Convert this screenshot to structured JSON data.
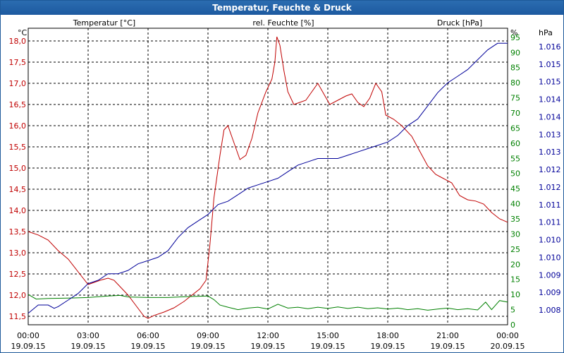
{
  "window": {
    "title": "Temperatur, Feuchte & Druck"
  },
  "colors": {
    "temp": "#c00000",
    "hum": "#008000",
    "press": "#000099",
    "grid": "#000000"
  },
  "chart_data": {
    "type": "line",
    "title": "Temperatur, Feuchte & Druck",
    "axes": {
      "temp": {
        "label": "Temperatur [°C]",
        "unit": "°C",
        "ylim": [
          11.3,
          18.3
        ],
        "ticks": [
          "11,5",
          "12,0",
          "12,5",
          "13,0",
          "13,5",
          "14,0",
          "14,5",
          "15,0",
          "15,5",
          "16,0",
          "16,5",
          "17,0",
          "17,5",
          "18,0"
        ]
      },
      "hum": {
        "label": "rel. Feuchte [%]",
        "unit": "%",
        "ylim": [
          0,
          98
        ],
        "ticks": [
          "0",
          "5",
          "10",
          "15",
          "20",
          "25",
          "30",
          "35",
          "40",
          "45",
          "50",
          "55",
          "60",
          "65",
          "70",
          "75",
          "80",
          "85",
          "90",
          "95"
        ]
      },
      "press": {
        "label": "Druck [hPa]",
        "unit": "hPa",
        "ticks": [
          "1.008",
          "1.009",
          "1.009",
          "1.010",
          "1.010",
          "1.011",
          "1.011",
          "1.012",
          "1.012",
          "1.013",
          "1.013",
          "1.014",
          "1.014",
          "1.015",
          "1.015",
          "1.016"
        ]
      }
    },
    "x_ticks": [
      {
        "time": "00:00",
        "date": "19.09.15"
      },
      {
        "time": "03:00",
        "date": "19.09.15"
      },
      {
        "time": "06:00",
        "date": "19.09.15"
      },
      {
        "time": "09:00",
        "date": "19.09.15"
      },
      {
        "time": "12:00",
        "date": "19.09.15"
      },
      {
        "time": "15:00",
        "date": "19.09.15"
      },
      {
        "time": "18:00",
        "date": "19.09.15"
      },
      {
        "time": "21:00",
        "date": "19.09.15"
      },
      {
        "time": "00:00",
        "date": "20.09.15"
      }
    ],
    "x_range_hours": [
      0,
      24
    ],
    "series": [
      {
        "name": "Temperatur [°C]",
        "axis": "temp",
        "color": "#c00000",
        "points": [
          [
            0,
            13.5
          ],
          [
            0.5,
            13.42
          ],
          [
            1,
            13.3
          ],
          [
            1.5,
            13.05
          ],
          [
            2,
            12.85
          ],
          [
            2.5,
            12.55
          ],
          [
            3,
            12.25
          ],
          [
            3.3,
            12.3
          ],
          [
            3.6,
            12.35
          ],
          [
            4,
            12.4
          ],
          [
            4.3,
            12.35
          ],
          [
            4.6,
            12.2
          ],
          [
            5,
            12.0
          ],
          [
            5.4,
            11.75
          ],
          [
            5.8,
            11.5
          ],
          [
            6,
            11.45
          ],
          [
            6.3,
            11.52
          ],
          [
            6.8,
            11.6
          ],
          [
            7.3,
            11.7
          ],
          [
            7.8,
            11.85
          ],
          [
            8.2,
            12.0
          ],
          [
            8.6,
            12.15
          ],
          [
            8.9,
            12.35
          ],
          [
            9.1,
            13.2
          ],
          [
            9.3,
            14.3
          ],
          [
            9.6,
            15.3
          ],
          [
            9.8,
            15.9
          ],
          [
            10,
            16.0
          ],
          [
            10.3,
            15.6
          ],
          [
            10.6,
            15.2
          ],
          [
            10.9,
            15.3
          ],
          [
            11.2,
            15.7
          ],
          [
            11.5,
            16.3
          ],
          [
            11.9,
            16.8
          ],
          [
            12.2,
            17.1
          ],
          [
            12.35,
            17.5
          ],
          [
            12.45,
            18.1
          ],
          [
            12.6,
            17.9
          ],
          [
            12.8,
            17.3
          ],
          [
            13,
            16.8
          ],
          [
            13.3,
            16.5
          ],
          [
            13.6,
            16.55
          ],
          [
            13.9,
            16.6
          ],
          [
            14.2,
            16.8
          ],
          [
            14.5,
            17.0
          ],
          [
            14.8,
            16.75
          ],
          [
            15.1,
            16.5
          ],
          [
            15.5,
            16.6
          ],
          [
            15.9,
            16.7
          ],
          [
            16.2,
            16.75
          ],
          [
            16.5,
            16.55
          ],
          [
            16.8,
            16.45
          ],
          [
            17.1,
            16.65
          ],
          [
            17.4,
            17.0
          ],
          [
            17.7,
            16.8
          ],
          [
            17.9,
            16.25
          ],
          [
            18.3,
            16.15
          ],
          [
            18.7,
            16.0
          ],
          [
            19.2,
            15.75
          ],
          [
            19.6,
            15.4
          ],
          [
            20,
            15.05
          ],
          [
            20.4,
            14.85
          ],
          [
            20.8,
            14.75
          ],
          [
            21.2,
            14.65
          ],
          [
            21.6,
            14.35
          ],
          [
            22,
            14.25
          ],
          [
            22.4,
            14.22
          ],
          [
            22.8,
            14.15
          ],
          [
            23.2,
            13.95
          ],
          [
            23.6,
            13.8
          ],
          [
            24,
            13.72
          ]
        ]
      },
      {
        "name": "rel. Feuchte [%]",
        "axis": "hum",
        "color": "#008000",
        "points": [
          [
            0,
            10
          ],
          [
            0.4,
            8.5
          ],
          [
            1,
            8.7
          ],
          [
            2,
            8.8
          ],
          [
            3,
            9.0
          ],
          [
            4,
            9.5
          ],
          [
            4.6,
            9.7
          ],
          [
            5,
            9.2
          ],
          [
            6,
            9.0
          ],
          [
            7,
            9.0
          ],
          [
            8,
            9.3
          ],
          [
            9,
            9.5
          ],
          [
            9.3,
            8.3
          ],
          [
            9.6,
            6.5
          ],
          [
            10,
            5.8
          ],
          [
            10.5,
            5.0
          ],
          [
            11,
            5.5
          ],
          [
            11.5,
            5.8
          ],
          [
            12,
            5.2
          ],
          [
            12.5,
            6.8
          ],
          [
            13,
            5.5
          ],
          [
            13.5,
            5.8
          ],
          [
            14,
            5.3
          ],
          [
            14.5,
            5.8
          ],
          [
            15,
            5.4
          ],
          [
            15.5,
            5.9
          ],
          [
            16,
            5.4
          ],
          [
            16.5,
            5.8
          ],
          [
            17,
            5.3
          ],
          [
            17.5,
            5.6
          ],
          [
            18,
            5.2
          ],
          [
            18.5,
            5.5
          ],
          [
            19,
            5.0
          ],
          [
            19.5,
            5.3
          ],
          [
            20,
            4.8
          ],
          [
            20.5,
            5.2
          ],
          [
            21,
            5.5
          ],
          [
            21.5,
            5.0
          ],
          [
            22,
            5.3
          ],
          [
            22.5,
            4.9
          ],
          [
            22.9,
            7.5
          ],
          [
            23.2,
            5.0
          ],
          [
            23.6,
            8.0
          ],
          [
            24,
            7.5
          ]
        ]
      },
      {
        "name": "Druck [hPa]",
        "axis": "press",
        "color": "#000099",
        "points": [
          [
            0,
            1.0079
          ],
          [
            0.5,
            1.00815
          ],
          [
            1,
            1.00815
          ],
          [
            1.3,
            1.00805
          ],
          [
            1.5,
            1.0081
          ],
          [
            2,
            1.0083
          ],
          [
            2.5,
            1.0085
          ],
          [
            3,
            1.0088
          ],
          [
            3.5,
            1.0089
          ],
          [
            4,
            1.0091
          ],
          [
            4.5,
            1.0091
          ],
          [
            5,
            1.0092
          ],
          [
            5.5,
            1.0094
          ],
          [
            6,
            1.0095
          ],
          [
            6.5,
            1.0096
          ],
          [
            7,
            1.0098
          ],
          [
            7.5,
            1.0102
          ],
          [
            8,
            1.0105
          ],
          [
            8.5,
            1.0107
          ],
          [
            9,
            1.0109
          ],
          [
            9.5,
            1.0112
          ],
          [
            10,
            1.0113
          ],
          [
            10.5,
            1.0115
          ],
          [
            11,
            1.0117
          ],
          [
            11.5,
            1.0118
          ],
          [
            12,
            1.0119
          ],
          [
            12.5,
            1.012
          ],
          [
            13,
            1.0122
          ],
          [
            13.5,
            1.0124
          ],
          [
            14,
            1.0125
          ],
          [
            14.5,
            1.0126
          ],
          [
            15,
            1.0126
          ],
          [
            15.5,
            1.0126
          ],
          [
            16,
            1.0127
          ],
          [
            16.5,
            1.0128
          ],
          [
            17,
            1.0129
          ],
          [
            17.5,
            1.013
          ],
          [
            18,
            1.0131
          ],
          [
            18.5,
            1.0133
          ],
          [
            19,
            1.0136
          ],
          [
            19.5,
            1.0138
          ],
          [
            20,
            1.0142
          ],
          [
            20.5,
            1.0146
          ],
          [
            21,
            1.0149
          ],
          [
            21.5,
            1.0151
          ],
          [
            22,
            1.0153
          ],
          [
            22.5,
            1.0156
          ],
          [
            23,
            1.0159
          ],
          [
            23.5,
            1.0161
          ],
          [
            24,
            1.0161
          ]
        ]
      }
    ]
  }
}
